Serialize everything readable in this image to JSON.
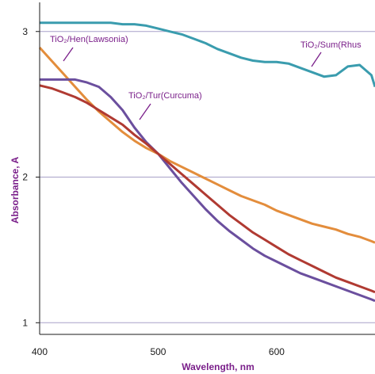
{
  "chart_data": {
    "type": "line",
    "xlabel": "Wavelength, nm",
    "ylabel": "Absorbance, A",
    "xlim": [
      400,
      683
    ],
    "ylim": [
      0.92,
      3.2
    ],
    "x_ticks": [
      "400",
      "500",
      "600"
    ],
    "y_ticks": [
      "1",
      "2",
      "3"
    ],
    "grid": "horizontal",
    "colors": {
      "gridline": "#a8a0c8",
      "axis": "#1a1a1a",
      "annotation": "#7a1f8a",
      "ylabel": "#7a1f8a"
    },
    "annotations": [
      {
        "text": "TiO₂/Hen(Lawsonia)",
        "series": "TiO2/Hen(Lawsonia)",
        "x": 420,
        "y": 2.79
      },
      {
        "text": "TiO₂/Tur(Curcuma)",
        "series": "TiO2/Tur(Curcuma)",
        "x": 487,
        "y": 2.42
      },
      {
        "text": "TiO₂/Sum(Rhus",
        "series": "TiO2/Sum(Rhus)",
        "x": 651,
        "y": 2.82
      }
    ],
    "series": [
      {
        "name": "TiO2/Sum(Rhus)",
        "color": "#3a9cae",
        "x": [
          400,
          410,
          420,
          430,
          440,
          450,
          460,
          470,
          480,
          490,
          500,
          510,
          520,
          530,
          540,
          550,
          560,
          570,
          580,
          590,
          600,
          610,
          620,
          630,
          640,
          650,
          660,
          670,
          680,
          683
        ],
        "y": [
          3.06,
          3.06,
          3.06,
          3.06,
          3.06,
          3.06,
          3.06,
          3.05,
          3.05,
          3.04,
          3.02,
          3.0,
          2.98,
          2.95,
          2.92,
          2.88,
          2.85,
          2.82,
          2.8,
          2.79,
          2.79,
          2.78,
          2.75,
          2.72,
          2.69,
          2.7,
          2.76,
          2.77,
          2.7,
          2.62
        ]
      },
      {
        "name": "TiO2/Hen(Lawsonia)",
        "color": "#e38d3c",
        "x": [
          400,
          410,
          420,
          430,
          440,
          450,
          460,
          470,
          480,
          490,
          500,
          510,
          520,
          530,
          540,
          550,
          560,
          570,
          580,
          590,
          600,
          610,
          620,
          630,
          640,
          650,
          660,
          670,
          680,
          683
        ],
        "y": [
          2.89,
          2.8,
          2.71,
          2.62,
          2.53,
          2.45,
          2.38,
          2.31,
          2.25,
          2.2,
          2.16,
          2.11,
          2.07,
          2.03,
          1.99,
          1.95,
          1.91,
          1.87,
          1.84,
          1.81,
          1.77,
          1.74,
          1.71,
          1.68,
          1.66,
          1.64,
          1.61,
          1.59,
          1.56,
          1.55
        ]
      },
      {
        "name": "TiO2/Tur(Curcuma)",
        "color": "#6b4f9e",
        "x": [
          400,
          410,
          420,
          430,
          440,
          450,
          460,
          470,
          480,
          490,
          500,
          510,
          520,
          530,
          540,
          550,
          560,
          570,
          580,
          590,
          600,
          610,
          620,
          630,
          640,
          650,
          660,
          670,
          680,
          683
        ],
        "y": [
          2.67,
          2.67,
          2.67,
          2.67,
          2.65,
          2.62,
          2.55,
          2.46,
          2.34,
          2.24,
          2.16,
          2.06,
          1.96,
          1.87,
          1.78,
          1.7,
          1.63,
          1.57,
          1.51,
          1.46,
          1.42,
          1.38,
          1.34,
          1.31,
          1.28,
          1.25,
          1.22,
          1.19,
          1.16,
          1.15
        ]
      },
      {
        "name": "TiO2/Tur(Curcuma) red",
        "color": "#b03a32",
        "x": [
          400,
          410,
          420,
          430,
          440,
          450,
          460,
          470,
          480,
          490,
          500,
          510,
          520,
          530,
          540,
          550,
          560,
          570,
          580,
          590,
          600,
          610,
          620,
          630,
          640,
          650,
          660,
          670,
          680,
          683
        ],
        "y": [
          2.63,
          2.61,
          2.58,
          2.55,
          2.51,
          2.46,
          2.41,
          2.36,
          2.29,
          2.23,
          2.16,
          2.09,
          2.02,
          1.95,
          1.88,
          1.81,
          1.74,
          1.68,
          1.62,
          1.57,
          1.52,
          1.47,
          1.43,
          1.39,
          1.35,
          1.31,
          1.28,
          1.25,
          1.22,
          1.21
        ]
      }
    ]
  }
}
